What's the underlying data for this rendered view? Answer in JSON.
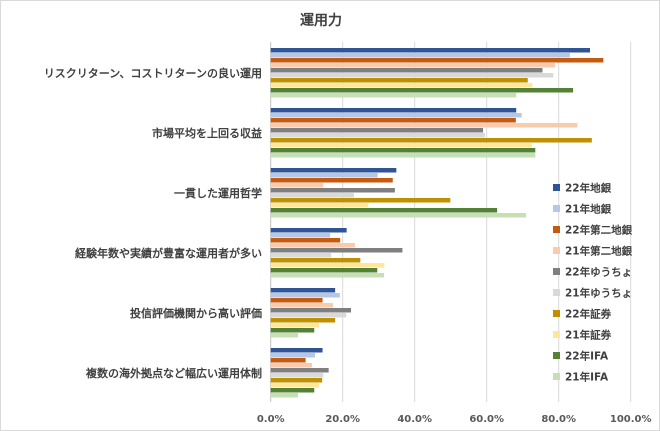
{
  "chart_data": {
    "type": "bar",
    "orientation": "horizontal",
    "title": "運用力",
    "xlabel": "",
    "ylabel": "",
    "xlim": [
      0,
      100
    ],
    "x_ticks": [
      "0.0%",
      "20.0%",
      "40.0%",
      "60.0%",
      "80.0%",
      "100.0%"
    ],
    "grid": true,
    "legend_position": "right",
    "categories": [
      "リスクリターン、コストリターンの良い運用",
      "市場平均を上回る収益",
      "一貫した運用哲学",
      "経験年数や実績が豊富な運用者が多い",
      "投信評価機関から高い評価",
      "複数の海外拠点など幅広い運用体制"
    ],
    "series": [
      {
        "name": "22年地銀",
        "color": "#2F5597",
        "values": [
          88.7,
          68.2,
          34.9,
          21.1,
          17.9,
          14.4
        ]
      },
      {
        "name": "21年地銀",
        "color": "#B4C7E7",
        "values": [
          83.1,
          69.7,
          29.7,
          16.5,
          19.2,
          12.3
        ]
      },
      {
        "name": "22年第二地銀",
        "color": "#C55A11",
        "values": [
          92.4,
          68.1,
          33.9,
          19.3,
          14.4,
          9.7
        ]
      },
      {
        "name": "21年第二地銀",
        "color": "#F8CBAD",
        "values": [
          79.0,
          85.2,
          14.6,
          23.4,
          17.3,
          11.5
        ]
      },
      {
        "name": "22年ゆうちょ",
        "color": "#7F7F7F",
        "values": [
          75.5,
          59.0,
          34.5,
          36.6,
          22.3,
          16.1
        ]
      },
      {
        "name": "21年ゆうちょ",
        "color": "#D9D9D9",
        "values": [
          78.5,
          59.5,
          23.1,
          16.8,
          21.0,
          14.6
        ]
      },
      {
        "name": "22年証券",
        "color": "#BF9000",
        "values": [
          71.4,
          89.2,
          49.9,
          24.9,
          17.9,
          14.3
        ]
      },
      {
        "name": "21年証券",
        "color": "#FFE699",
        "values": [
          72.7,
          72.5,
          27.1,
          31.6,
          13.4,
          13.4
        ]
      },
      {
        "name": "22年IFA",
        "color": "#548235",
        "values": [
          84.0,
          73.5,
          62.9,
          29.6,
          12.1,
          12.1
        ]
      },
      {
        "name": "21年IFA",
        "color": "#C5E0B4",
        "values": [
          68.2,
          73.5,
          70.9,
          31.5,
          7.6,
          7.6
        ]
      }
    ]
  }
}
